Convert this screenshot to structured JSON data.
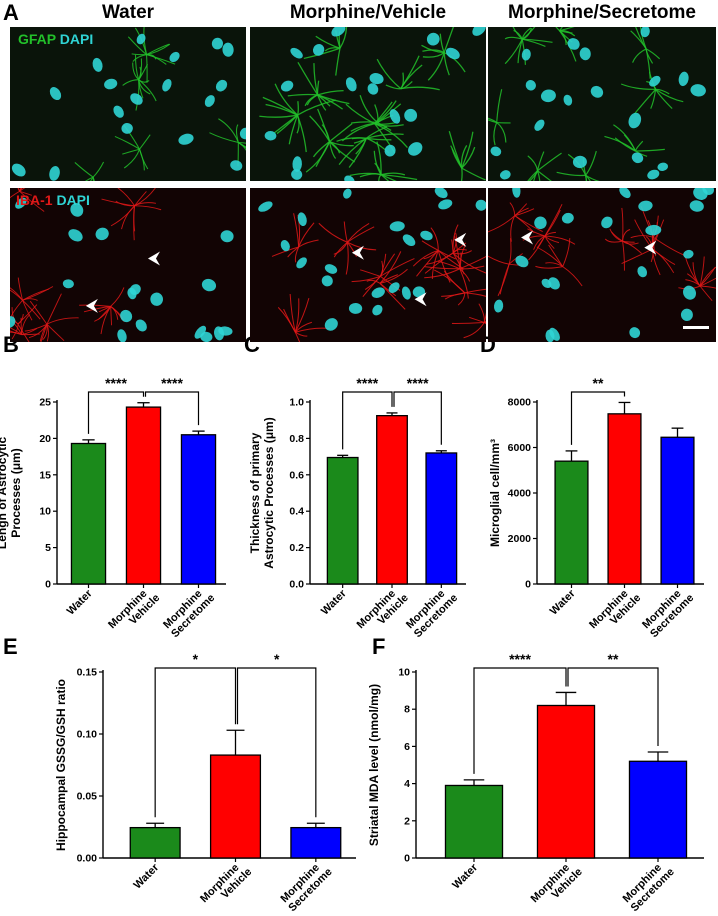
{
  "panels": {
    "A": "A",
    "B": "B",
    "C": "C",
    "D": "D",
    "E": "E",
    "F": "F"
  },
  "microscopy": {
    "columns": [
      "Water",
      "Morphine/Vehicle",
      "Morphine/Secretome"
    ],
    "row1_stains": [
      "GFAP",
      "DAPI"
    ],
    "row2_stains": [
      "IBA-1",
      "DAPI"
    ],
    "colors": {
      "gfap": "#22c02a",
      "dapi": "#2fd4d4",
      "iba1": "#e01818",
      "background": "#050805"
    }
  },
  "chart_data": [
    {
      "id": "B",
      "type": "bar",
      "categories": [
        "Water",
        "Morphine\nVehicle",
        "Morphine\nSecretome"
      ],
      "values": [
        19.3,
        24.3,
        20.5
      ],
      "errors": [
        0.5,
        0.6,
        0.5
      ],
      "colors": [
        "#1b8a1b",
        "#ff0000",
        "#0000ff"
      ],
      "ylabel": "Lengh of Astrocytic\nProcesses (μm)",
      "ylim": [
        0,
        25
      ],
      "yticks": [
        0,
        5,
        10,
        15,
        20,
        25
      ],
      "significance": [
        {
          "from": 0,
          "to": 1,
          "label": "****"
        },
        {
          "from": 1,
          "to": 2,
          "label": "****"
        }
      ]
    },
    {
      "id": "C",
      "type": "bar",
      "categories": [
        "Water",
        "Morphine\nVehicle",
        "Morphine\nSecretome"
      ],
      "values": [
        0.695,
        0.925,
        0.72
      ],
      "errors": [
        0.012,
        0.015,
        0.012
      ],
      "colors": [
        "#1b8a1b",
        "#ff0000",
        "#0000ff"
      ],
      "ylabel": "Thickness of primary\nAstrocytic Processes (μm)",
      "ylim": [
        0,
        1.0
      ],
      "yticks": [
        0.0,
        0.2,
        0.4,
        0.6,
        0.8,
        1.0
      ],
      "yticklabels": [
        "0.0",
        "0.2",
        "0.4",
        "0.6",
        "0.8",
        "1.0"
      ],
      "significance": [
        {
          "from": 0,
          "to": 1,
          "label": "****"
        },
        {
          "from": 1,
          "to": 2,
          "label": "****"
        }
      ]
    },
    {
      "id": "D",
      "type": "bar",
      "categories": [
        "Water",
        "Morphine\nVehicle",
        "Morphine\nSecretome"
      ],
      "values": [
        5400,
        7480,
        6450
      ],
      "errors": [
        450,
        500,
        400
      ],
      "colors": [
        "#1b8a1b",
        "#ff0000",
        "#0000ff"
      ],
      "ylabel": "Microglial cell/mm³",
      "ylim": [
        0,
        8000
      ],
      "yticks": [
        0,
        2000,
        4000,
        6000,
        8000
      ],
      "significance": [
        {
          "from": 0,
          "to": 1,
          "label": "**"
        }
      ]
    },
    {
      "id": "E",
      "type": "bar",
      "categories": [
        "Water",
        "Morphine\nVehicle",
        "Morphine\nSecretome"
      ],
      "values": [
        0.0245,
        0.083,
        0.0245
      ],
      "errors": [
        0.0035,
        0.02,
        0.0035
      ],
      "colors": [
        "#1b8a1b",
        "#ff0000",
        "#0000ff"
      ],
      "ylabel": "Hippocampal GSSG/GSH ratio",
      "ylim": [
        0,
        0.15
      ],
      "yticks": [
        0,
        0.05,
        0.1,
        0.15
      ],
      "yticklabels": [
        "0.00",
        "0.05",
        "0.10",
        "0.15"
      ],
      "significance": [
        {
          "from": 0,
          "to": 1,
          "label": "*"
        },
        {
          "from": 1,
          "to": 2,
          "label": "*"
        }
      ]
    },
    {
      "id": "F",
      "type": "bar",
      "categories": [
        "Water",
        "Morphine\nVehicle",
        "Morphine\nSecretome"
      ],
      "values": [
        3.9,
        8.2,
        5.2
      ],
      "errors": [
        0.3,
        0.7,
        0.5
      ],
      "colors": [
        "#1b8a1b",
        "#ff0000",
        "#0000ff"
      ],
      "ylabel": "Striatal MDA level (nmol/mg)",
      "ylim": [
        0,
        10
      ],
      "yticks": [
        0,
        2,
        4,
        6,
        8,
        10
      ],
      "significance": [
        {
          "from": 0,
          "to": 1,
          "label": "****"
        },
        {
          "from": 1,
          "to": 2,
          "label": "**"
        }
      ]
    }
  ]
}
